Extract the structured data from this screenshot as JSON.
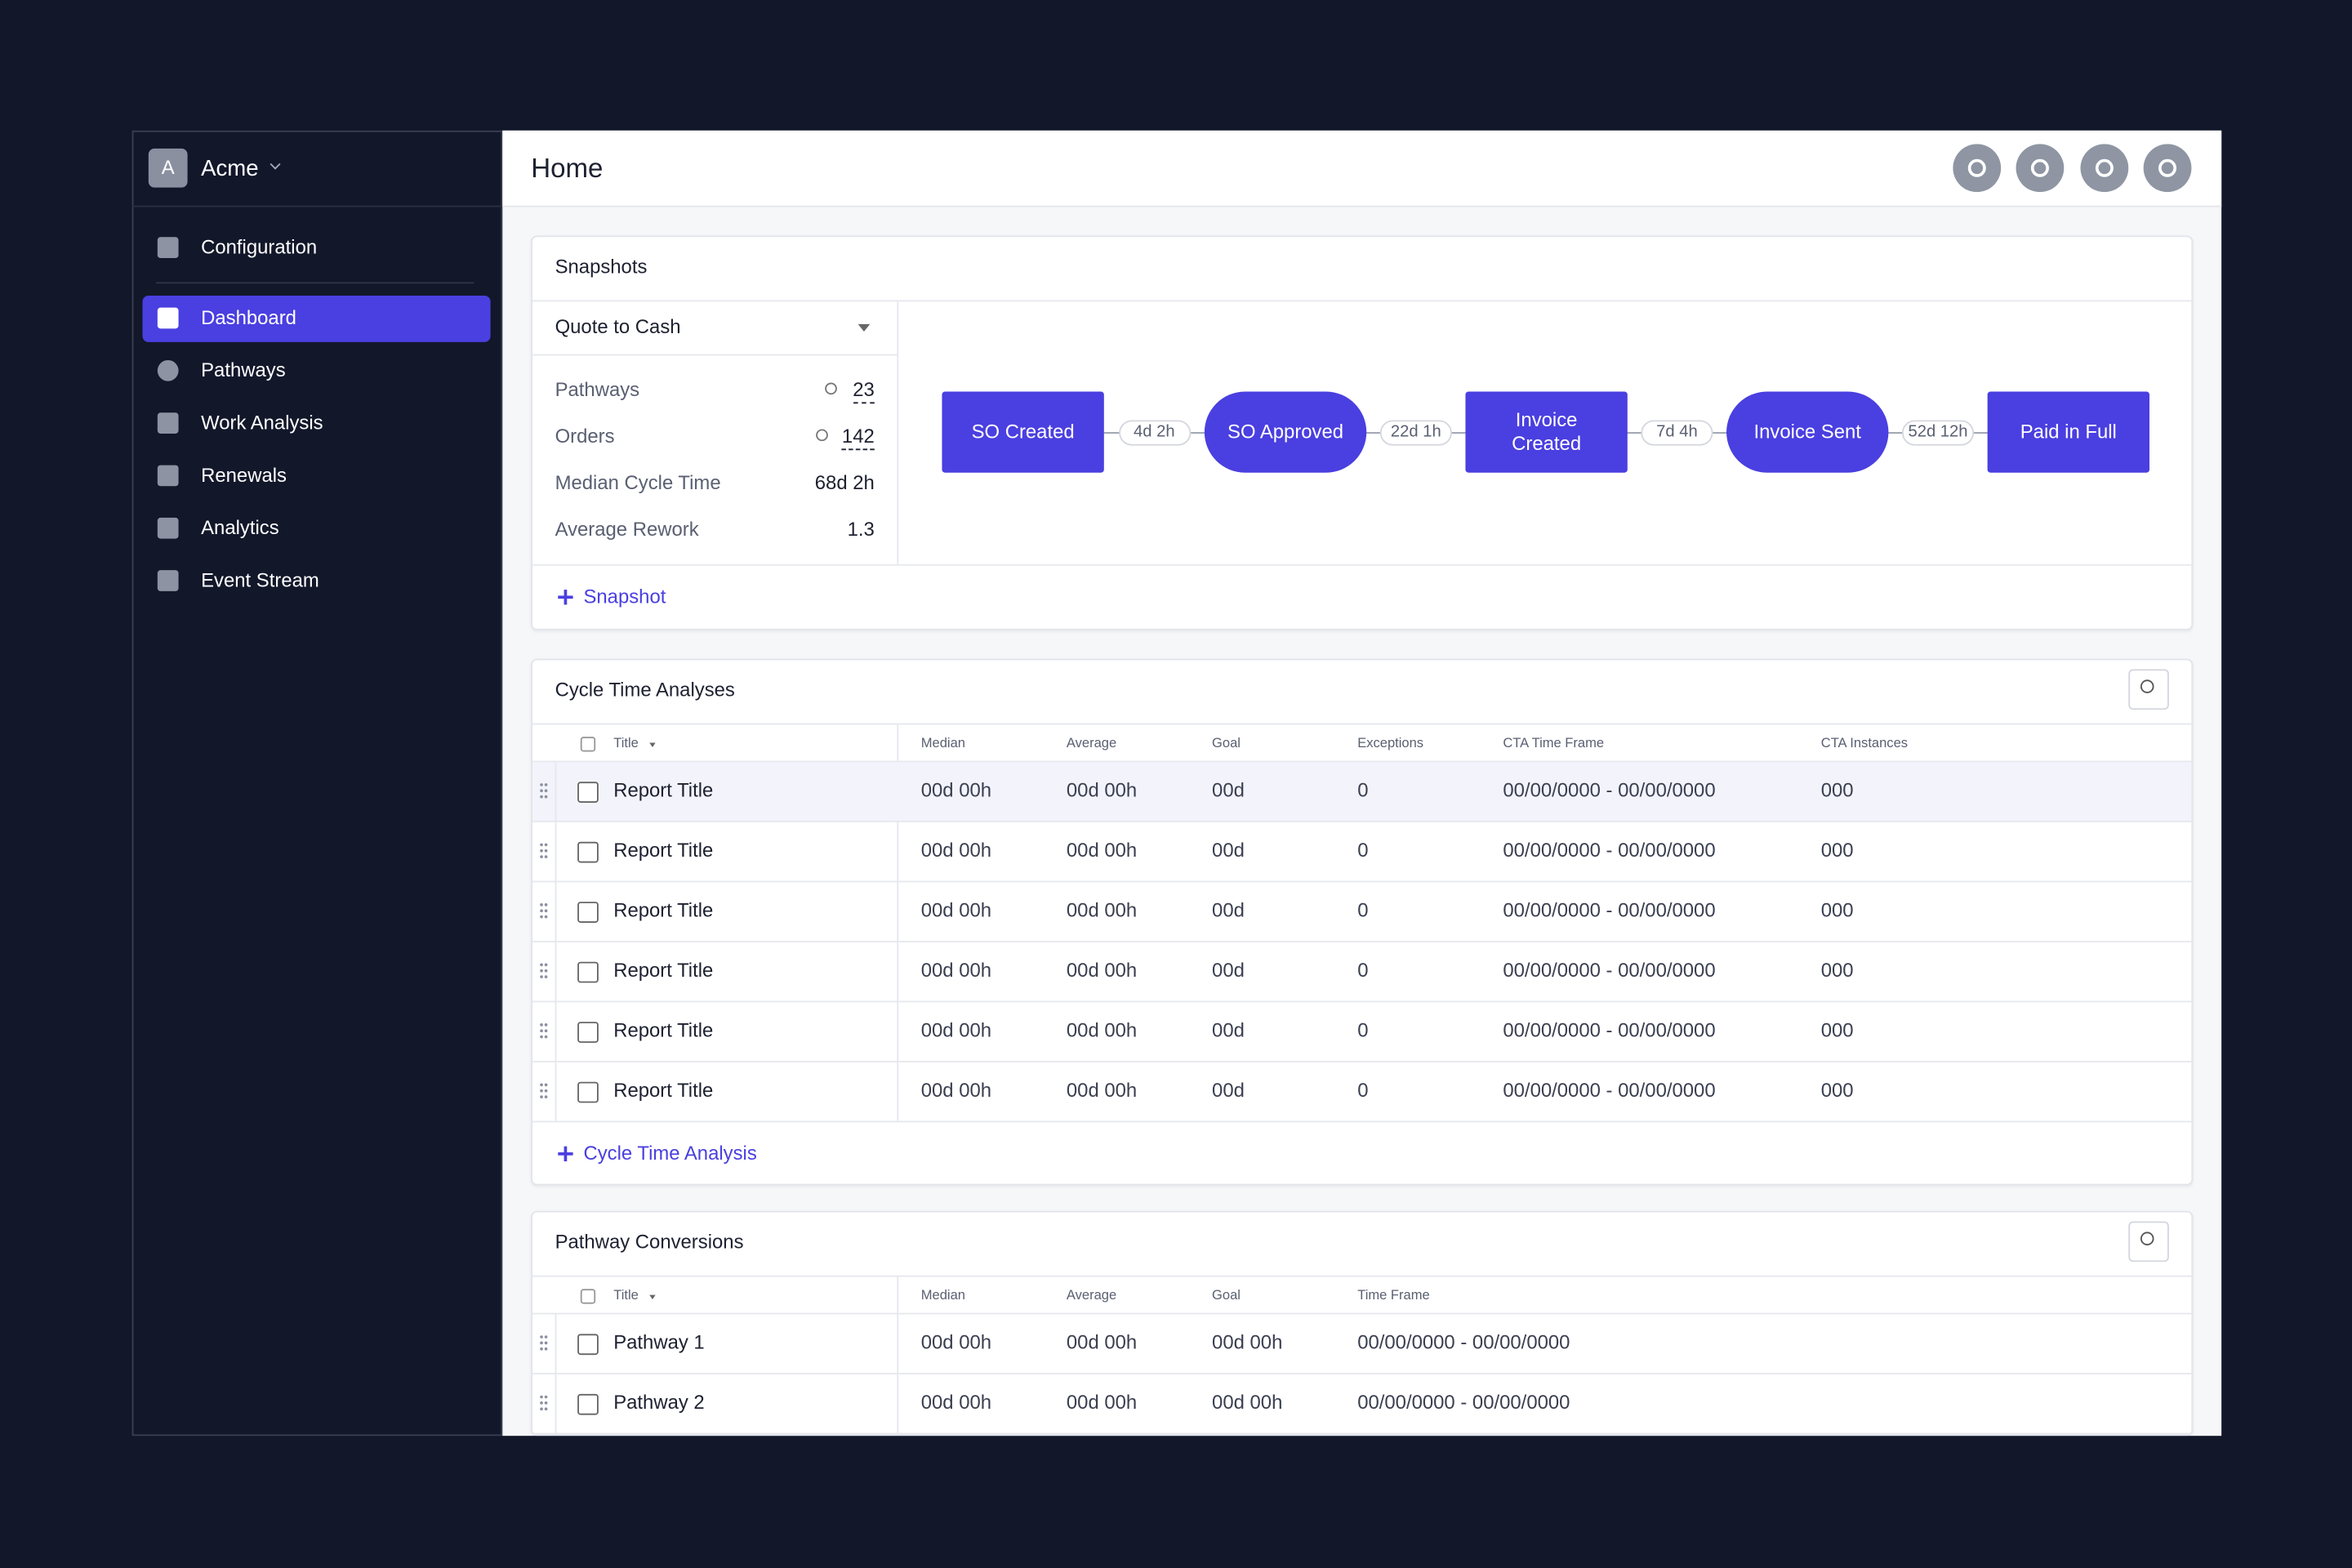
{
  "sidebar": {
    "workspace_initial": "A",
    "workspace": "Acme",
    "configuration": "Configuration",
    "nav": [
      "Dashboard",
      "Pathways",
      "Work Analysis",
      "Renewals",
      "Analytics",
      "Event Stream"
    ]
  },
  "header": {
    "title": "Home"
  },
  "snapshots": {
    "title": "Snapshots",
    "selector": "Quote to Cash",
    "metrics": [
      {
        "label": "Pathways",
        "value": 23
      },
      {
        "label": "Orders",
        "value": 142
      },
      {
        "label": "Median Cycle Time",
        "value": "68d 2h"
      },
      {
        "label": "Average Rework",
        "value": 1.3
      }
    ],
    "nodes": [
      "SO Created",
      "SO Approved",
      "Invoice Created",
      "Invoice Sent",
      "Paid in Full"
    ],
    "edges": [
      "4d 2h",
      "22d 1h",
      "7d 4h",
      "52d 12h"
    ],
    "add": "Snapshot"
  },
  "cycle_time_analyses": {
    "title": "Cycle Time Analyses",
    "columns": [
      "Title",
      "Median",
      "Average",
      "Goal",
      "Exceptions",
      "CTA Time Frame",
      "CTA Instances"
    ],
    "rows": [
      [
        "Report Title",
        "00d 00h",
        "00d 00h",
        "00d",
        0,
        "00/00/0000 - 00/00/0000",
        "000"
      ],
      [
        "Report Title",
        "00d 00h",
        "00d 00h",
        "00d",
        0,
        "00/00/0000 - 00/00/0000",
        "000"
      ],
      [
        "Report Title",
        "00d 00h",
        "00d 00h",
        "00d",
        0,
        "00/00/0000 - 00/00/0000",
        "000"
      ],
      [
        "Report Title",
        "00d 00h",
        "00d 00h",
        "00d",
        0,
        "00/00/0000 - 00/00/0000",
        "000"
      ],
      [
        "Report Title",
        "00d 00h",
        "00d 00h",
        "00d",
        0,
        "00/00/0000 - 00/00/0000",
        "000"
      ],
      [
        "Report Title",
        "00d 00h",
        "00d 00h",
        "00d",
        0,
        "00/00/0000 - 00/00/0000",
        "000"
      ]
    ],
    "add": "Cycle Time Analysis"
  },
  "pathway_conversions": {
    "title": "Pathway Conversions",
    "columns": [
      "Title",
      "Median",
      "Average",
      "Goal",
      "Time Frame"
    ],
    "rows": [
      [
        "Pathway 1",
        "00d 00h",
        "00d 00h",
        "00d 00h",
        "00/00/0000 - 00/00/0000"
      ],
      [
        "Pathway 2",
        "00d 00h",
        "00d 00h",
        "00d 00h",
        "00/00/0000 - 00/00/0000"
      ]
    ]
  }
}
